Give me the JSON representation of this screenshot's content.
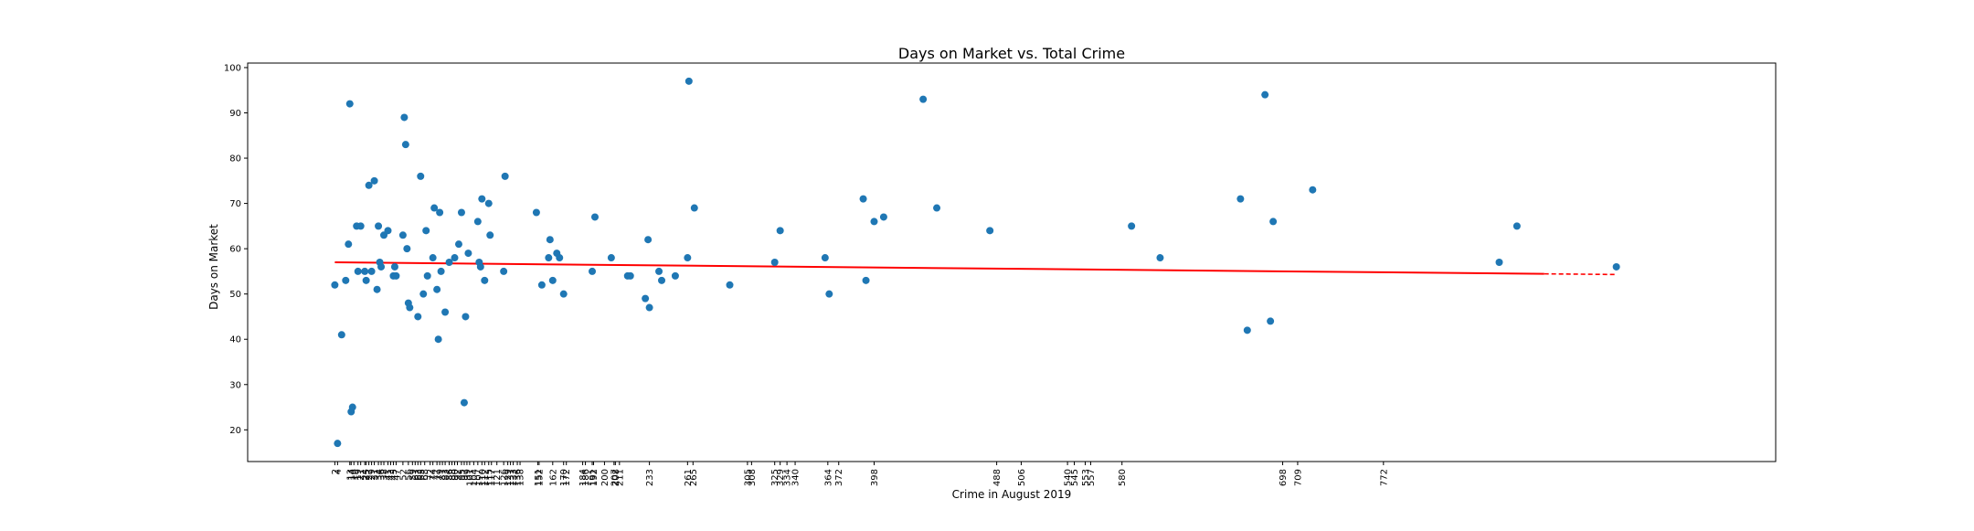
{
  "chart_data": {
    "type": "scatter",
    "title": "Days on Market vs. Total Crime",
    "xlabel": "Crime in August 2019",
    "ylabel": "Days on Market",
    "xlim": [
      -62,
      1060
    ],
    "ylim": [
      13,
      101
    ],
    "y_ticks": [
      20,
      30,
      40,
      50,
      60,
      70,
      80,
      90,
      100
    ],
    "x_ticks": [
      2,
      4,
      13,
      14,
      16,
      19,
      21,
      24,
      25,
      27,
      29,
      31,
      34,
      36,
      38,
      41,
      43,
      45,
      47,
      52,
      56,
      59,
      61,
      63,
      65,
      68,
      72,
      74,
      77,
      79,
      81,
      83,
      86,
      88,
      90,
      92,
      95,
      97,
      99,
      101,
      104,
      107,
      110,
      112,
      115,
      117,
      119,
      121,
      124,
      126,
      129,
      131,
      133,
      136,
      138,
      140,
      142,
      144,
      146,
      148,
      150,
      152,
      154,
      156,
      158,
      160,
      162,
      165,
      167,
      169,
      171,
      173,
      175,
      177,
      179,
      181,
      183,
      185,
      187,
      189,
      191,
      193,
      195,
      197,
      199,
      201,
      203,
      205,
      207,
      209,
      211,
      213,
      215,
      217,
      219,
      221,
      223,
      225,
      227,
      229,
      231,
      233,
      235,
      237,
      239,
      241,
      243,
      245,
      247,
      249,
      251,
      253,
      255,
      257,
      259,
      261,
      263,
      265,
      267,
      269,
      271,
      273,
      275,
      277,
      279,
      281,
      283,
      285,
      287,
      289,
      291,
      293,
      295,
      297,
      299,
      301,
      303,
      305,
      307,
      309,
      311,
      313,
      315,
      317,
      319,
      321,
      323,
      325,
      327,
      329,
      331,
      333,
      335,
      337,
      339,
      341,
      343,
      345,
      347,
      349,
      351,
      353,
      355,
      357,
      359,
      361,
      363,
      365,
      367,
      369,
      371,
      373,
      375,
      377,
      379,
      381,
      383,
      385,
      387,
      389,
      391,
      393,
      395,
      397,
      399,
      401,
      403,
      405,
      407,
      409,
      411,
      413,
      415,
      417,
      419,
      421,
      423,
      425,
      427,
      429,
      431,
      433,
      435,
      437,
      439,
      441,
      443,
      445,
      447,
      449,
      451,
      453,
      455,
      457,
      459,
      461,
      463,
      465,
      467,
      469,
      471,
      473,
      475,
      477,
      479,
      481,
      483,
      485,
      487,
      489,
      491,
      493,
      495,
      497,
      499,
      501,
      503,
      505,
      507,
      509,
      511,
      513,
      515,
      517,
      519,
      521,
      523,
      525,
      527,
      529,
      531,
      533,
      535,
      537,
      539,
      541,
      543,
      545,
      547,
      549,
      551,
      553,
      555,
      557,
      559,
      561,
      563,
      565,
      567,
      569,
      571,
      573,
      575,
      577,
      579,
      581,
      583,
      585,
      587,
      589,
      591,
      593,
      595,
      597,
      599,
      601,
      603,
      605,
      607,
      609,
      611,
      613,
      615,
      617,
      619,
      621,
      623,
      625,
      627,
      629,
      631,
      633,
      635,
      637,
      639,
      641,
      643,
      645,
      647,
      649,
      651,
      653,
      655,
      657,
      659,
      661,
      663,
      665,
      667,
      669,
      671,
      673,
      675,
      677,
      679,
      681,
      683,
      685,
      687,
      689,
      691,
      693,
      695,
      697,
      699,
      701,
      703,
      705,
      707,
      709,
      711,
      713,
      715,
      717,
      719,
      721,
      723,
      725,
      727,
      729,
      731,
      733,
      735,
      737,
      739,
      741,
      743,
      745,
      747,
      749,
      751,
      753,
      755,
      757,
      759,
      761,
      763,
      765,
      767,
      769,
      771,
      773,
      775,
      777,
      779,
      781,
      783,
      785,
      787,
      789,
      791,
      793,
      795,
      797,
      799,
      801,
      803,
      805,
      807,
      809,
      811,
      813,
      815,
      817,
      819,
      821,
      823,
      825,
      827,
      829,
      831,
      833,
      835,
      837,
      839,
      841,
      843,
      845,
      847,
      849,
      851,
      853,
      855,
      857,
      859,
      861,
      863,
      865,
      867,
      869,
      871,
      873,
      875,
      877,
      879,
      881,
      883,
      885,
      887,
      889,
      891,
      893,
      895,
      897,
      899,
      901,
      903,
      905,
      907,
      909,
      911,
      913,
      915,
      917,
      919,
      921,
      923,
      925,
      927,
      929,
      931,
      933,
      935,
      937,
      939,
      941,
      943,
      945,
      947,
      949,
      951,
      953,
      955,
      957,
      959,
      961,
      963,
      965,
      967,
      969,
      971,
      973,
      975,
      977,
      979,
      981,
      983,
      985,
      987,
      989,
      991,
      993,
      995,
      997,
      999
    ],
    "x_tick_labels_shown": [
      "2",
      "4",
      "13",
      "14",
      "16",
      "19",
      "21",
      "24",
      "25",
      "27",
      "29",
      "31",
      "34",
      "36",
      "38",
      "41",
      "43",
      "45",
      "47",
      "52",
      "56",
      "59",
      "61",
      "63",
      "65",
      "68",
      "72",
      "74",
      "77",
      "79",
      "81",
      "83",
      "86",
      "88",
      "90",
      "92",
      "95",
      "97",
      "99",
      "101",
      "104",
      "107",
      "110",
      "112",
      "115",
      "117",
      "121",
      "126",
      "129",
      "131",
      "133",
      "136",
      "138",
      "151",
      "152",
      "162",
      "170",
      "172",
      "184",
      "186",
      "191",
      "192",
      "200",
      "207",
      "208",
      "211",
      "233",
      "261",
      "265",
      "305",
      "308",
      "325",
      "329",
      "334",
      "340",
      "364",
      "372",
      "398",
      "488",
      "506",
      "540",
      "545",
      "553",
      "557",
      "580",
      "698",
      "709",
      "772"
    ],
    "series": [
      {
        "type": "scatter",
        "color": "#1f77b4",
        "points": [
          [
            2,
            52
          ],
          [
            4,
            17
          ],
          [
            7,
            41
          ],
          [
            10,
            53
          ],
          [
            12,
            61
          ],
          [
            13,
            92
          ],
          [
            14,
            24
          ],
          [
            15,
            25
          ],
          [
            18,
            65
          ],
          [
            19,
            55
          ],
          [
            21,
            65
          ],
          [
            24,
            55
          ],
          [
            25,
            53
          ],
          [
            27,
            74
          ],
          [
            29,
            55
          ],
          [
            31,
            75
          ],
          [
            33,
            51
          ],
          [
            34,
            65
          ],
          [
            35,
            57
          ],
          [
            36,
            56
          ],
          [
            38,
            63
          ],
          [
            41,
            64
          ],
          [
            45,
            54
          ],
          [
            46,
            56
          ],
          [
            47,
            54
          ],
          [
            52,
            63
          ],
          [
            53,
            89
          ],
          [
            54,
            83
          ],
          [
            55,
            60
          ],
          [
            56,
            48
          ],
          [
            57,
            47
          ],
          [
            63,
            45
          ],
          [
            65,
            76
          ],
          [
            67,
            50
          ],
          [
            69,
            64
          ],
          [
            70,
            54
          ],
          [
            74,
            58
          ],
          [
            75,
            69
          ],
          [
            77,
            51
          ],
          [
            78,
            40
          ],
          [
            79,
            68
          ],
          [
            80,
            55
          ],
          [
            83,
            46
          ],
          [
            86,
            57
          ],
          [
            90,
            58
          ],
          [
            93,
            61
          ],
          [
            95,
            68
          ],
          [
            97,
            26
          ],
          [
            98,
            45
          ],
          [
            100,
            59
          ],
          [
            107,
            66
          ],
          [
            108,
            57
          ],
          [
            109,
            56
          ],
          [
            110,
            71
          ],
          [
            112,
            53
          ],
          [
            115,
            70
          ],
          [
            116,
            63
          ],
          [
            126,
            55
          ],
          [
            127,
            76
          ],
          [
            150,
            68
          ],
          [
            154,
            52
          ],
          [
            159,
            58
          ],
          [
            160,
            62
          ],
          [
            162,
            53
          ],
          [
            165,
            59
          ],
          [
            167,
            58
          ],
          [
            170,
            50
          ],
          [
            191,
            55
          ],
          [
            193,
            67
          ],
          [
            205,
            58
          ],
          [
            217,
            54
          ],
          [
            219,
            54
          ],
          [
            230,
            49
          ],
          [
            232,
            62
          ],
          [
            233,
            47
          ],
          [
            240,
            55
          ],
          [
            242,
            53
          ],
          [
            252,
            54
          ],
          [
            261,
            58
          ],
          [
            262,
            97
          ],
          [
            266,
            69
          ],
          [
            292,
            52
          ],
          [
            325,
            57
          ],
          [
            329,
            64
          ],
          [
            362,
            58
          ],
          [
            365,
            50
          ],
          [
            390,
            71
          ],
          [
            392,
            53
          ],
          [
            398,
            66
          ],
          [
            405,
            67
          ],
          [
            434,
            93
          ],
          [
            444,
            69
          ],
          [
            483,
            64
          ],
          [
            587,
            65
          ],
          [
            608,
            58
          ],
          [
            667,
            71
          ],
          [
            672,
            42
          ],
          [
            685,
            94
          ],
          [
            689,
            44
          ],
          [
            691,
            66
          ],
          [
            720,
            73
          ],
          [
            857,
            57
          ],
          [
            870,
            65
          ],
          [
            943,
            56
          ]
        ]
      },
      {
        "type": "line",
        "color": "#ff0000",
        "name": "",
        "x": [
          2,
          943
        ],
        "y": [
          57.0,
          54.3
        ],
        "solid_until": 890
      }
    ]
  }
}
